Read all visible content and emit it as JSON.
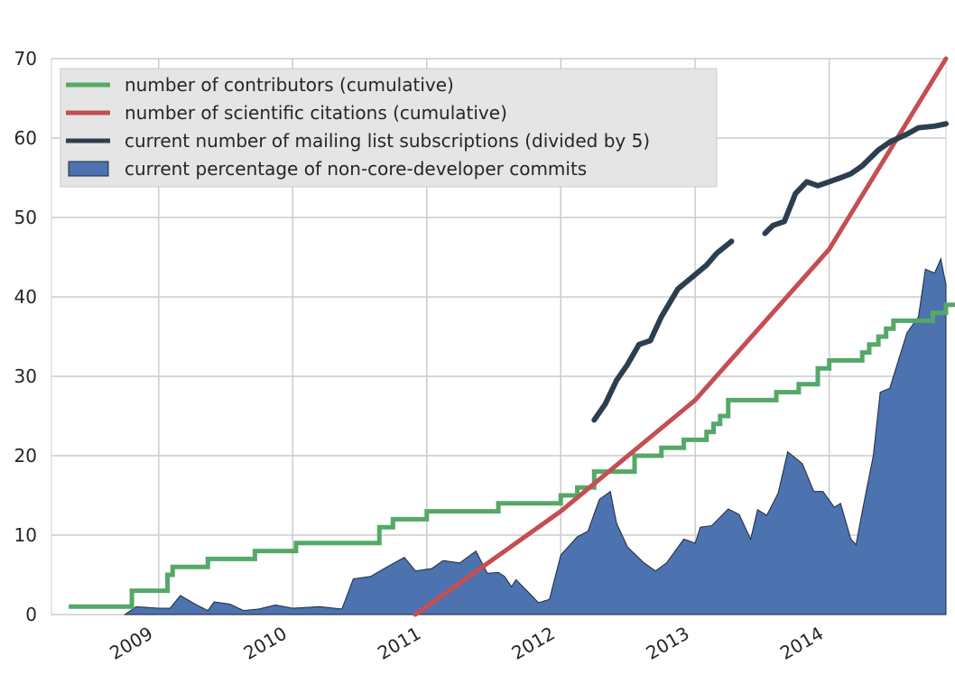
{
  "chart_data": {
    "type": "line",
    "title": "",
    "xlabel": "",
    "ylabel": "",
    "xlim": [
      "2008-03-15",
      "2014-11-15"
    ],
    "ylim": [
      0,
      70
    ],
    "grid": true,
    "legend_placement": "top-left",
    "y_ticks": [
      "0",
      "10",
      "20",
      "30",
      "40",
      "50",
      "60",
      "70"
    ],
    "x_ticks": [
      {
        "date": "2009-01-01",
        "label": "2009"
      },
      {
        "date": "2010-01-01",
        "label": "2010"
      },
      {
        "date": "2011-01-01",
        "label": "2011"
      },
      {
        "date": "2012-01-01",
        "label": "2012"
      },
      {
        "date": "2013-01-01",
        "label": "2013"
      },
      {
        "date": "2014-01-01",
        "label": "2014"
      }
    ],
    "legend": [
      {
        "label": "number of contributors (cumulative)",
        "color": "#55a868",
        "kind": "line"
      },
      {
        "label": "number of scientific citations (cumulative)",
        "color": "#c44e52",
        "kind": "line"
      },
      {
        "label": "current number of mailing list subscriptions (divided by 5)",
        "color": "#2d3e50",
        "kind": "line"
      },
      {
        "label": "current percentage of non-core-developer commits",
        "color": "#4c72b0",
        "kind": "area"
      }
    ],
    "series": [
      {
        "name": "number of contributors (cumulative)",
        "kind": "step",
        "color": "#55a868",
        "points": [
          [
            "2008-05-01",
            1
          ],
          [
            "2008-10-20",
            3
          ],
          [
            "2009-01-25",
            5
          ],
          [
            "2009-02-08",
            6
          ],
          [
            "2009-05-15",
            7
          ],
          [
            "2009-09-20",
            8
          ],
          [
            "2010-01-10",
            9
          ],
          [
            "2010-08-25",
            11
          ],
          [
            "2010-10-01",
            12
          ],
          [
            "2011-01-01",
            13
          ],
          [
            "2011-07-15",
            14
          ],
          [
            "2012-01-01",
            15
          ],
          [
            "2012-02-15",
            16
          ],
          [
            "2012-04-01",
            18
          ],
          [
            "2012-07-20",
            20
          ],
          [
            "2012-10-01",
            21
          ],
          [
            "2012-12-01",
            22
          ],
          [
            "2013-02-01",
            23
          ],
          [
            "2013-02-20",
            24
          ],
          [
            "2013-03-10",
            25
          ],
          [
            "2013-04-01",
            27
          ],
          [
            "2013-08-10",
            28
          ],
          [
            "2013-10-10",
            29
          ],
          [
            "2013-12-01",
            31
          ],
          [
            "2014-01-01",
            32
          ],
          [
            "2014-04-01",
            33
          ],
          [
            "2014-04-20",
            34
          ],
          [
            "2014-05-15",
            35
          ],
          [
            "2014-06-05",
            36
          ],
          [
            "2014-06-25",
            37
          ],
          [
            "2014-10-10",
            38
          ],
          [
            "2014-11-15",
            39
          ],
          [
            "2014-12-15",
            39
          ]
        ]
      },
      {
        "name": "number of scientific citations (cumulative)",
        "kind": "line",
        "color": "#c44e52",
        "points": [
          [
            "2010-12-01",
            0
          ],
          [
            "2012-01-01",
            13
          ],
          [
            "2013-01-01",
            27
          ],
          [
            "2014-01-01",
            46
          ],
          [
            "2014-11-15",
            70
          ]
        ]
      },
      {
        "name": "current number of mailing list subscriptions (divided by 5)",
        "kind": "line",
        "color": "#2d3e50",
        "segments": [
          [
            [
              "2012-04-01",
              24.5
            ],
            [
              "2012-05-01",
              26.5
            ],
            [
              "2012-06-01",
              29.5
            ],
            [
              "2012-07-01",
              31.5
            ],
            [
              "2012-08-01",
              34
            ],
            [
              "2012-09-01",
              34.5
            ],
            [
              "2012-10-01",
              37.5
            ],
            [
              "2012-11-15",
              41
            ],
            [
              "2013-01-01",
              42.8
            ],
            [
              "2013-02-01",
              44
            ],
            [
              "2013-03-01",
              45.5
            ],
            [
              "2013-04-10",
              47
            ]
          ],
          [
            [
              "2013-07-10",
              48
            ],
            [
              "2013-08-01",
              49
            ],
            [
              "2013-09-01",
              49.5
            ],
            [
              "2013-10-01",
              53
            ],
            [
              "2013-11-01",
              54.5
            ],
            [
              "2013-12-01",
              54
            ],
            [
              "2014-01-01",
              54.5
            ],
            [
              "2014-02-01",
              55
            ],
            [
              "2014-03-01",
              55.5
            ],
            [
              "2014-04-01",
              56.5
            ],
            [
              "2014-05-15",
              58.5
            ],
            [
              "2014-06-15",
              59.5
            ],
            [
              "2014-08-01",
              60.5
            ],
            [
              "2014-09-01",
              61.3
            ],
            [
              "2014-10-15",
              61.5
            ],
            [
              "2014-11-15",
              61.8
            ]
          ]
        ]
      },
      {
        "name": "current percentage of non-core-developer commits",
        "kind": "area",
        "color": "#4c72b0",
        "points": [
          [
            "2008-10-01",
            0
          ],
          [
            "2008-11-01",
            1
          ],
          [
            "2009-01-01",
            0.8
          ],
          [
            "2009-02-01",
            0.8
          ],
          [
            "2009-03-01",
            2.4
          ],
          [
            "2009-04-15",
            1.2
          ],
          [
            "2009-05-15",
            0.5
          ],
          [
            "2009-06-01",
            1.6
          ],
          [
            "2009-07-15",
            1.3
          ],
          [
            "2009-08-20",
            0.5
          ],
          [
            "2009-10-01",
            0.7
          ],
          [
            "2009-11-15",
            1.2
          ],
          [
            "2010-01-01",
            0.8
          ],
          [
            "2010-03-15",
            1
          ],
          [
            "2010-05-15",
            0.7
          ],
          [
            "2010-06-15",
            4.5
          ],
          [
            "2010-08-01",
            4.8
          ],
          [
            "2010-09-15",
            6
          ],
          [
            "2010-11-01",
            7.2
          ],
          [
            "2010-12-01",
            5.5
          ],
          [
            "2011-01-15",
            5.8
          ],
          [
            "2011-02-15",
            6.8
          ],
          [
            "2011-04-01",
            6.5
          ],
          [
            "2011-05-15",
            8
          ],
          [
            "2011-06-15",
            5.2
          ],
          [
            "2011-07-15",
            5.3
          ],
          [
            "2011-08-01",
            4.8
          ],
          [
            "2011-08-20",
            3.5
          ],
          [
            "2011-09-01",
            4.4
          ],
          [
            "2011-10-01",
            3
          ],
          [
            "2011-11-01",
            1.5
          ],
          [
            "2011-12-01",
            1.9
          ],
          [
            "2012-01-01",
            7.5
          ],
          [
            "2012-02-15",
            9.8
          ],
          [
            "2012-03-15",
            10.5
          ],
          [
            "2012-04-15",
            14.5
          ],
          [
            "2012-05-15",
            15.5
          ],
          [
            "2012-06-01",
            11.5
          ],
          [
            "2012-07-01",
            8.5
          ],
          [
            "2012-08-15",
            6.5
          ],
          [
            "2012-09-15",
            5.5
          ],
          [
            "2012-10-15",
            6.5
          ],
          [
            "2012-12-01",
            9.5
          ],
          [
            "2013-01-01",
            9
          ],
          [
            "2013-01-15",
            11
          ],
          [
            "2013-02-15",
            11.2
          ],
          [
            "2013-04-01",
            13.3
          ],
          [
            "2013-05-01",
            12.6
          ],
          [
            "2013-06-01",
            9.5
          ],
          [
            "2013-06-20",
            13.2
          ],
          [
            "2013-07-15",
            12.5
          ],
          [
            "2013-08-15",
            15.3
          ],
          [
            "2013-09-10",
            20.5
          ],
          [
            "2013-10-20",
            19
          ],
          [
            "2013-11-20",
            15.5
          ],
          [
            "2013-12-15",
            15.5
          ],
          [
            "2014-01-15",
            13.5
          ],
          [
            "2014-02-01",
            14
          ],
          [
            "2014-03-01",
            9.5
          ],
          [
            "2014-03-15",
            8.8
          ],
          [
            "2014-04-01",
            13
          ],
          [
            "2014-05-01",
            20
          ],
          [
            "2014-05-20",
            28
          ],
          [
            "2014-06-15",
            28.5
          ],
          [
            "2014-07-15",
            33
          ],
          [
            "2014-08-01",
            35.5
          ],
          [
            "2014-09-01",
            37.5
          ],
          [
            "2014-09-20",
            43.5
          ],
          [
            "2014-10-15",
            43
          ],
          [
            "2014-11-01",
            44.8
          ],
          [
            "2014-11-15",
            41.5
          ]
        ]
      }
    ]
  }
}
